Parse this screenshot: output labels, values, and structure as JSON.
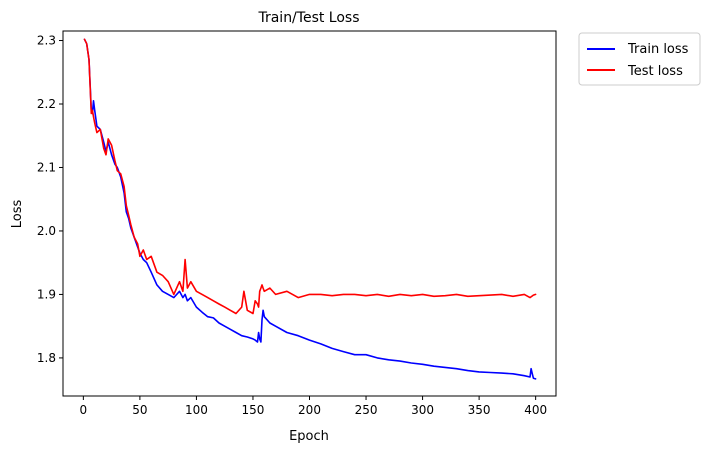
{
  "chart_data": {
    "type": "line",
    "title": "Train/Test Loss",
    "xlabel": "Epoch",
    "ylabel": "Loss",
    "xlim": [
      -18,
      418
    ],
    "ylim": [
      1.74,
      2.315
    ],
    "xticks": [
      0,
      50,
      100,
      150,
      200,
      250,
      300,
      350,
      400
    ],
    "xtick_labels": [
      "0",
      "50",
      "100",
      "150",
      "200",
      "250",
      "300",
      "350",
      "400"
    ],
    "yticks": [
      1.8,
      1.9,
      2.0,
      2.1,
      2.2,
      2.3
    ],
    "ytick_labels": [
      "1.8",
      "1.9",
      "2.0",
      "2.1",
      "2.2",
      "2.3"
    ],
    "grid": false,
    "legend_position": "outside upper right",
    "series": [
      {
        "name": "Train loss",
        "color": "#0000ff",
        "x": [
          1,
          3,
          5,
          7,
          8,
          9,
          10,
          12,
          15,
          18,
          20,
          22,
          25,
          28,
          30,
          33,
          36,
          38,
          40,
          42,
          45,
          48,
          50,
          53,
          56,
          60,
          65,
          70,
          75,
          80,
          85,
          88,
          90,
          92,
          95,
          100,
          105,
          110,
          115,
          120,
          125,
          130,
          135,
          140,
          145,
          150,
          152,
          154,
          155,
          156,
          157,
          158,
          159,
          160,
          165,
          170,
          180,
          190,
          200,
          210,
          220,
          230,
          240,
          250,
          260,
          270,
          280,
          290,
          300,
          310,
          320,
          330,
          340,
          350,
          360,
          370,
          380,
          390,
          395,
          396,
          397,
          398,
          400
        ],
        "y": [
          2.302,
          2.295,
          2.27,
          2.19,
          2.185,
          2.205,
          2.19,
          2.165,
          2.16,
          2.14,
          2.125,
          2.14,
          2.12,
          2.105,
          2.1,
          2.085,
          2.06,
          2.03,
          2.02,
          2.005,
          1.99,
          1.975,
          1.965,
          1.955,
          1.95,
          1.935,
          1.915,
          1.905,
          1.9,
          1.895,
          1.905,
          1.895,
          1.9,
          1.89,
          1.895,
          1.88,
          1.872,
          1.865,
          1.863,
          1.855,
          1.85,
          1.845,
          1.84,
          1.835,
          1.833,
          1.83,
          1.828,
          1.825,
          1.84,
          1.83,
          1.825,
          1.86,
          1.875,
          1.865,
          1.855,
          1.85,
          1.84,
          1.835,
          1.828,
          1.822,
          1.815,
          1.81,
          1.805,
          1.805,
          1.8,
          1.797,
          1.795,
          1.792,
          1.79,
          1.787,
          1.785,
          1.783,
          1.78,
          1.778,
          1.777,
          1.776,
          1.775,
          1.772,
          1.77,
          1.783,
          1.775,
          1.768,
          1.767
        ]
      },
      {
        "name": "Test loss",
        "color": "#ff0000",
        "x": [
          1,
          3,
          5,
          7,
          8,
          9,
          10,
          12,
          15,
          18,
          20,
          22,
          25,
          28,
          30,
          33,
          36,
          38,
          40,
          42,
          45,
          48,
          50,
          53,
          56,
          60,
          65,
          70,
          75,
          80,
          85,
          88,
          90,
          92,
          95,
          100,
          105,
          110,
          115,
          120,
          125,
          130,
          135,
          140,
          142,
          145,
          150,
          152,
          154,
          155,
          156,
          157,
          158,
          159,
          160,
          165,
          170,
          180,
          190,
          200,
          210,
          220,
          230,
          240,
          250,
          260,
          270,
          280,
          290,
          300,
          310,
          320,
          330,
          340,
          350,
          360,
          370,
          380,
          390,
          395,
          398,
          400
        ],
        "y": [
          2.302,
          2.295,
          2.27,
          2.185,
          2.19,
          2.18,
          2.17,
          2.155,
          2.16,
          2.13,
          2.12,
          2.145,
          2.135,
          2.11,
          2.095,
          2.09,
          2.07,
          2.04,
          2.025,
          2.01,
          1.99,
          1.98,
          1.96,
          1.97,
          1.955,
          1.96,
          1.935,
          1.93,
          1.92,
          1.9,
          1.92,
          1.905,
          1.955,
          1.91,
          1.92,
          1.905,
          1.9,
          1.895,
          1.89,
          1.885,
          1.88,
          1.875,
          1.87,
          1.88,
          1.905,
          1.875,
          1.87,
          1.89,
          1.885,
          1.88,
          1.905,
          1.91,
          1.915,
          1.91,
          1.905,
          1.91,
          1.9,
          1.905,
          1.895,
          1.9,
          1.9,
          1.898,
          1.9,
          1.9,
          1.898,
          1.9,
          1.897,
          1.9,
          1.898,
          1.9,
          1.897,
          1.898,
          1.9,
          1.897,
          1.898,
          1.899,
          1.9,
          1.897,
          1.9,
          1.895,
          1.899,
          1.9
        ]
      }
    ]
  }
}
